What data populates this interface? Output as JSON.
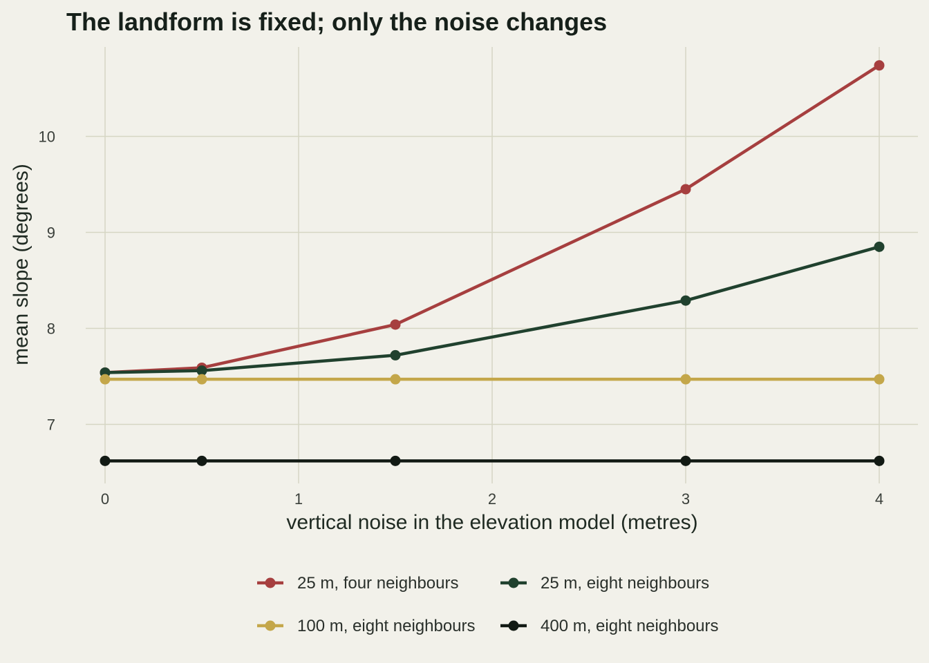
{
  "chart_data": {
    "type": "line",
    "title": "The landform is fixed; only the noise changes",
    "xlabel": "vertical noise in the elevation model (metres)",
    "ylabel": "mean slope (degrees)",
    "x": [
      0,
      0.5,
      1.5,
      3,
      4
    ],
    "x_ticks": [
      0,
      1,
      2,
      3,
      4
    ],
    "y_ticks": [
      7,
      8,
      9,
      10
    ],
    "xlim": [
      -0.1,
      4.1
    ],
    "ylim": [
      6.47,
      10.93
    ],
    "grid": true,
    "legend_position": "bottom",
    "series": [
      {
        "name": "25 m, four neighbours",
        "color": "#a63f3f",
        "values": [
          7.54,
          7.59,
          8.04,
          9.45,
          10.74
        ]
      },
      {
        "name": "25 m, eight neighbours",
        "color": "#20412e",
        "values": [
          7.54,
          7.56,
          7.72,
          8.29,
          8.85
        ]
      },
      {
        "name": "100 m, eight neighbours",
        "color": "#c4a74a",
        "values": [
          7.47,
          7.47,
          7.47,
          7.47,
          7.47
        ]
      },
      {
        "name": "400 m, eight neighbours",
        "color": "#121a14",
        "values": [
          6.62,
          6.62,
          6.62,
          6.62,
          6.62
        ]
      }
    ]
  }
}
